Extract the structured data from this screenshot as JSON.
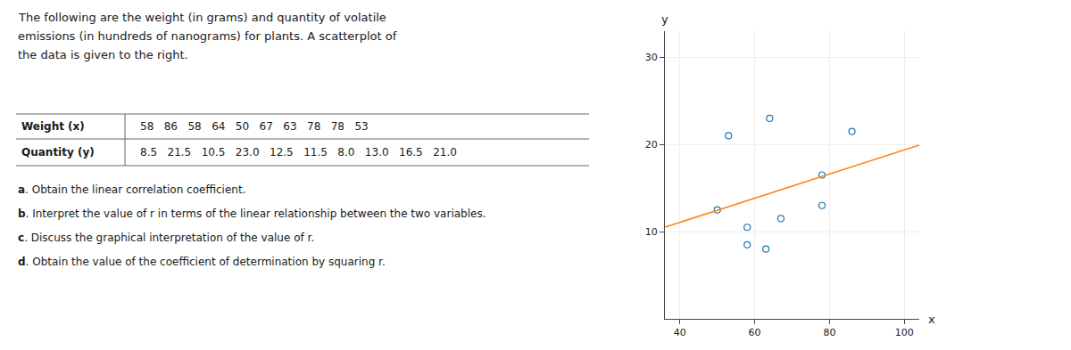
{
  "chart_data": {
    "type": "scatter",
    "title": "The following are the weight (in grams) and quantity of volatile\nemissions (in hundreds of nanograms) for plants. A scatterplot of\nthe data is given to the right.",
    "xlabel": "x",
    "ylabel": "y",
    "xlim": [
      36,
      104
    ],
    "xticks": [
      40,
      60,
      80,
      100
    ],
    "ylim": [
      0,
      33
    ],
    "yticks": [
      10,
      20,
      30
    ],
    "grid": true,
    "series": [
      {
        "type": "scatter",
        "marker": "circle-open",
        "x": [
          58,
          86,
          58,
          64,
          50,
          67,
          63,
          78,
          78,
          53
        ],
        "values": [
          8.5,
          21.5,
          10.5,
          23.0,
          12.5,
          11.5,
          8.0,
          13.0,
          16.5,
          21.0
        ]
      },
      {
        "type": "line",
        "x": [
          36,
          104
        ],
        "values": [
          10.5136,
          19.9331
        ]
      }
    ],
    "table": {
      "rows": [
        {
          "label": "Weight (x)",
          "values": [
            "58",
            "86",
            "58",
            "64",
            "50",
            "67",
            "63",
            "78",
            "78",
            "53"
          ]
        },
        {
          "label": "Quantity (y)",
          "values": [
            "8.5",
            "21.5",
            "10.5",
            "23.0",
            "12.5",
            "11.5",
            "8.0",
            "13.0",
            "16.5",
            "21.0"
          ]
        }
      ]
    },
    "annotations": [
      "a. Obtain the linear correlation coefficient.",
      "b. Interpret the value of r in terms of the linear relationship between the two variables.",
      "c. Discuss the graphical interpretation of the value of r.",
      "d. Obtain the value of the coefficient of determination by squaring r."
    ]
  }
}
